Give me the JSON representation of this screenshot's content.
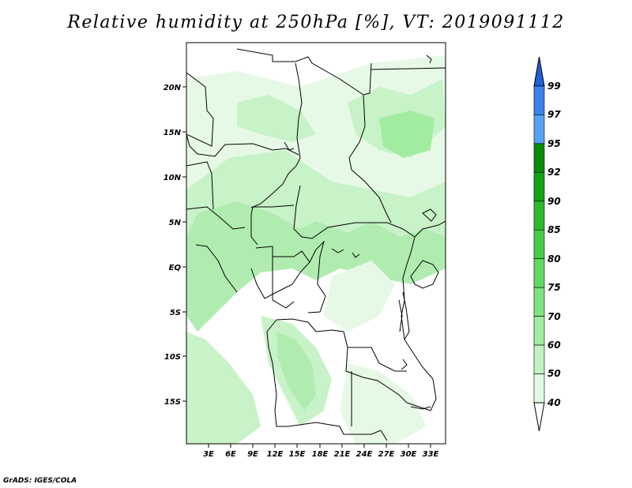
{
  "title": "Relative humidity at 250hPa [%], VT: 2019091112",
  "credit": "GrADS: IGES/COLA",
  "map": {
    "lon_range": [
      0,
      35
    ],
    "lat_range": [
      -20,
      25
    ],
    "lat_ticks": [
      "20N",
      "15N",
      "10N",
      "5N",
      "EQ",
      "5S",
      "10S",
      "15S"
    ],
    "lon_ticks": [
      "3E",
      "6E",
      "9E",
      "12E",
      "15E",
      "18E",
      "21E",
      "24E",
      "27E",
      "30E",
      "33E"
    ]
  },
  "colorbar": {
    "levels": [
      "99",
      "97",
      "95",
      "92",
      "90",
      "85",
      "80",
      "75",
      "70",
      "60",
      "50",
      "40"
    ],
    "colors": [
      "#1f60d6",
      "#3a82e8",
      "#58a2f2",
      "#0b8a0b",
      "#14a314",
      "#30b830",
      "#48cc48",
      "#62d962",
      "#80e380",
      "#a2eca2",
      "#c2f2c2",
      "#e2f9e2",
      "#ffffff"
    ]
  }
}
